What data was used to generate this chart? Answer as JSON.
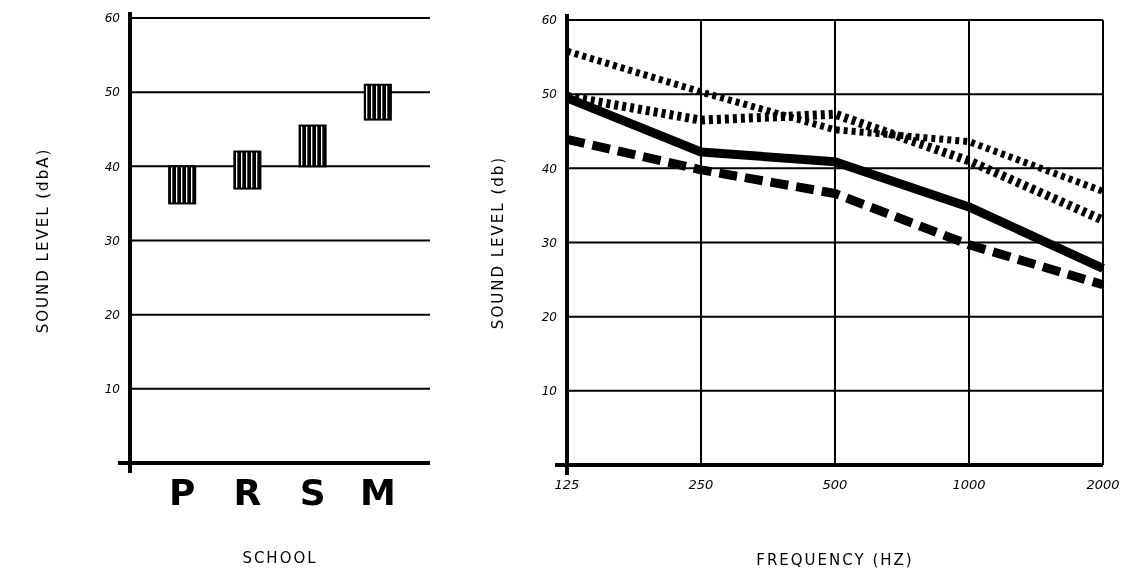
{
  "chart_data": [
    {
      "type": "bar",
      "xlabel": "SCHOOL",
      "ylabel": "SOUND LEVEL (dbA)",
      "categories": [
        "P",
        "R",
        "S",
        "M"
      ],
      "base": [
        35,
        37,
        40,
        46.3
      ],
      "values": [
        5,
        5,
        5.5,
        4.7
      ],
      "color": "#000000",
      "ylim": [
        0,
        60
      ],
      "yticks": [
        10,
        20,
        30,
        40,
        50,
        60
      ],
      "grid": "y"
    },
    {
      "type": "line",
      "xlabel": "FREQUENCY (HZ)",
      "ylabel": "SOUND LEVEL (db)",
      "categories": [
        "125",
        "250",
        "500",
        "1000",
        "2000"
      ],
      "ylim": [
        0,
        60
      ],
      "yticks": [
        10,
        20,
        30,
        40,
        50,
        60
      ],
      "grid": true,
      "series": [
        {
          "color": "#000000",
          "line_style": "dotted",
          "values": [
            55.8,
            50.3,
            45.2,
            43.6,
            36.9
          ]
        },
        {
          "color": "#000000",
          "line_style": "dotted",
          "values": [
            49.7,
            46.5,
            47.3,
            41,
            33
          ]
        },
        {
          "color": "#000000",
          "line_style": "solid",
          "values": [
            49.5,
            42.2,
            40.9,
            34.8,
            26.5
          ]
        },
        {
          "color": "#000000",
          "line_style": "dashed",
          "values": [
            43.9,
            39.8,
            36.6,
            29.7,
            24.3
          ]
        }
      ]
    }
  ]
}
